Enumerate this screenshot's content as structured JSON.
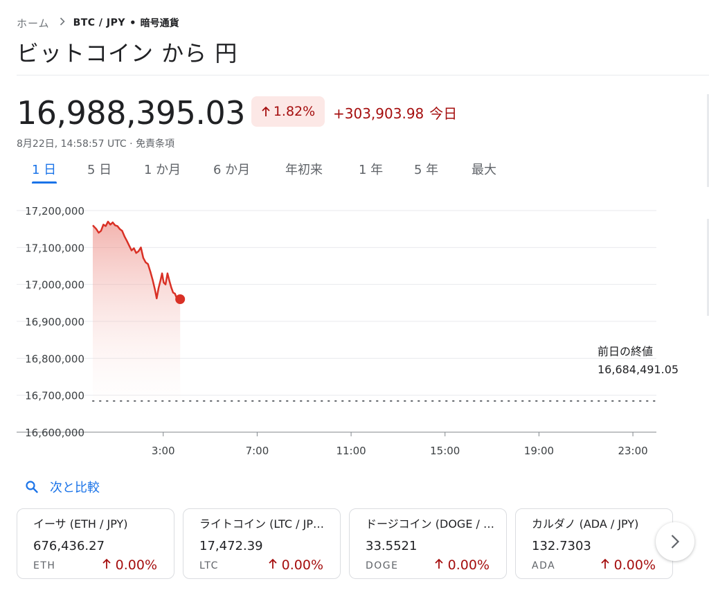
{
  "breadcrumb": {
    "home": "ホーム",
    "pair": "BTC / JPY",
    "dot": "•",
    "category": "暗号通貨"
  },
  "title": "ビットコイン から 円",
  "quote": {
    "price": "16,988,395.03",
    "change_pct": "1.82%",
    "change_abs": "+303,903.98",
    "today_label": "今日",
    "timestamp": "8月22日, 14:58:57 UTC",
    "disclaimer": "免責条項",
    "separator": "·"
  },
  "tabs": [
    "1 日",
    "5 日",
    "1 か月",
    "6 か月",
    "年初来",
    "1 年",
    "5 年",
    "最大"
  ],
  "active_tab": "1 日",
  "chart_data": {
    "type": "line",
    "y_ticks": [
      "17,200,000",
      "17,100,000",
      "17,000,000",
      "16,900,000",
      "16,800,000",
      "16,700,000",
      "16,600,000"
    ],
    "x_ticks": [
      "3:00",
      "7:00",
      "11:00",
      "15:00",
      "19:00",
      "23:00"
    ],
    "y_range": [
      16600000,
      17200000
    ],
    "x_range_hours": [
      0,
      24
    ],
    "previous_close_label": "前日の終値",
    "previous_close_value": "16,684,491.05",
    "previous_close": 16684491.05,
    "series": [
      {
        "color": "#d93025",
        "points": [
          [
            0.0,
            17160000
          ],
          [
            0.15,
            17150000
          ],
          [
            0.25,
            17140000
          ],
          [
            0.35,
            17145000
          ],
          [
            0.45,
            17162000
          ],
          [
            0.55,
            17158000
          ],
          [
            0.65,
            17170000
          ],
          [
            0.75,
            17162000
          ],
          [
            0.85,
            17168000
          ],
          [
            0.95,
            17160000
          ],
          [
            1.05,
            17158000
          ],
          [
            1.15,
            17150000
          ],
          [
            1.25,
            17145000
          ],
          [
            1.35,
            17130000
          ],
          [
            1.45,
            17118000
          ],
          [
            1.55,
            17105000
          ],
          [
            1.65,
            17092000
          ],
          [
            1.75,
            17098000
          ],
          [
            1.85,
            17085000
          ],
          [
            1.95,
            17090000
          ],
          [
            2.05,
            17100000
          ],
          [
            2.15,
            17072000
          ],
          [
            2.25,
            17060000
          ],
          [
            2.35,
            17055000
          ],
          [
            2.45,
            17035000
          ],
          [
            2.55,
            17012000
          ],
          [
            2.65,
            16985000
          ],
          [
            2.72,
            16962000
          ],
          [
            2.8,
            16990000
          ],
          [
            2.88,
            17010000
          ],
          [
            2.95,
            17030000
          ],
          [
            3.02,
            17005000
          ],
          [
            3.1,
            17000000
          ],
          [
            3.18,
            17030000
          ],
          [
            3.26,
            17010000
          ],
          [
            3.34,
            16992000
          ],
          [
            3.42,
            16978000
          ],
          [
            3.5,
            16975000
          ],
          [
            3.58,
            16962000
          ],
          [
            3.66,
            16960000
          ],
          [
            3.72,
            16960000
          ]
        ]
      }
    ]
  },
  "compare": {
    "label": "次と比較",
    "icon": "search-icon"
  },
  "cards": [
    {
      "name": "イーサ (ETH / JPY)",
      "price": "676,436.27",
      "symbol": "ETH",
      "change": "0.00%"
    },
    {
      "name": "ライトコイン (LTC / JP…",
      "price": "17,472.39",
      "symbol": "LTC",
      "change": "0.00%"
    },
    {
      "name": "ドージコイン (DOGE / …",
      "price": "33.5521",
      "symbol": "DOGE",
      "change": "0.00%"
    },
    {
      "name": "カルダノ (ADA / JPY)",
      "price": "132.7303",
      "symbol": "ADA",
      "change": "0.00%"
    }
  ],
  "next_button": {
    "icon": "chevron-right-icon"
  },
  "colors": {
    "accent": "#1a73e8",
    "up": "#a50e0e",
    "line": "#d93025"
  }
}
